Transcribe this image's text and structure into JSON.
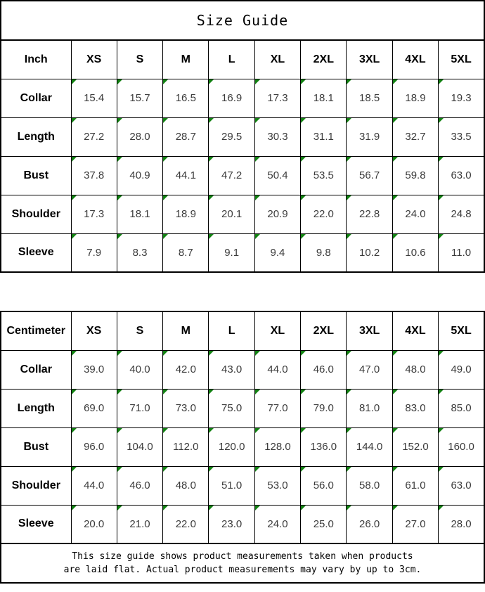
{
  "title": "Size Guide",
  "colors": {
    "marker_green": "#128212",
    "border_black": "#000000",
    "value_text": "#3b3b3b"
  },
  "tables": [
    {
      "unit_label": "Inch",
      "columns": [
        "XS",
        "S",
        "M",
        "L",
        "XL",
        "2XL",
        "3XL",
        "4XL",
        "5XL"
      ],
      "rows": [
        {
          "label": "Collar",
          "values": [
            "15.4",
            "15.7",
            "16.5",
            "16.9",
            "17.3",
            "18.1",
            "18.5",
            "18.9",
            "19.3"
          ]
        },
        {
          "label": "Length",
          "values": [
            "27.2",
            "28.0",
            "28.7",
            "29.5",
            "30.3",
            "31.1",
            "31.9",
            "32.7",
            "33.5"
          ]
        },
        {
          "label": "Bust",
          "values": [
            "37.8",
            "40.9",
            "44.1",
            "47.2",
            "50.4",
            "53.5",
            "56.7",
            "59.8",
            "63.0"
          ]
        },
        {
          "label": "Shoulder",
          "values": [
            "17.3",
            "18.1",
            "18.9",
            "20.1",
            "20.9",
            "22.0",
            "22.8",
            "24.0",
            "24.8"
          ]
        },
        {
          "label": "Sleeve",
          "values": [
            "7.9",
            "8.3",
            "8.7",
            "9.1",
            "9.4",
            "9.8",
            "10.2",
            "10.6",
            "11.0"
          ]
        }
      ]
    },
    {
      "unit_label": "Centimeter",
      "columns": [
        "XS",
        "S",
        "M",
        "L",
        "XL",
        "2XL",
        "3XL",
        "4XL",
        "5XL"
      ],
      "rows": [
        {
          "label": "Collar",
          "values": [
            "39.0",
            "40.0",
            "42.0",
            "43.0",
            "44.0",
            "46.0",
            "47.0",
            "48.0",
            "49.0"
          ]
        },
        {
          "label": "Length",
          "values": [
            "69.0",
            "71.0",
            "73.0",
            "75.0",
            "77.0",
            "79.0",
            "81.0",
            "83.0",
            "85.0"
          ]
        },
        {
          "label": "Bust",
          "values": [
            "96.0",
            "104.0",
            "112.0",
            "120.0",
            "128.0",
            "136.0",
            "144.0",
            "152.0",
            "160.0"
          ]
        },
        {
          "label": "Shoulder",
          "values": [
            "44.0",
            "46.0",
            "48.0",
            "51.0",
            "53.0",
            "56.0",
            "58.0",
            "61.0",
            "63.0"
          ]
        },
        {
          "label": "Sleeve",
          "values": [
            "20.0",
            "21.0",
            "22.0",
            "23.0",
            "24.0",
            "25.0",
            "26.0",
            "27.0",
            "28.0"
          ]
        }
      ]
    }
  ],
  "footer": {
    "line1": "This size guide shows product measurements taken when products",
    "line2": "are laid flat. Actual product measurements may vary by up to 3cm."
  }
}
